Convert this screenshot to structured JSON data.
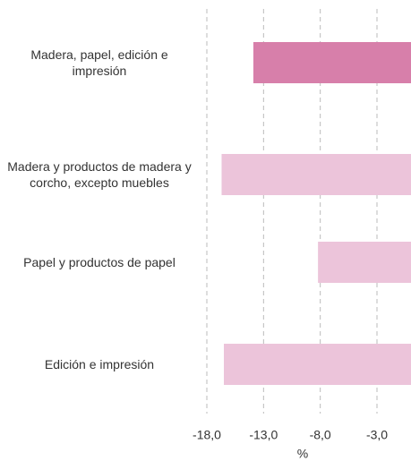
{
  "chart_data": {
    "type": "barh",
    "categories": [
      "Madera, papel, edición e impresión",
      "Madera y productos de madera y corcho, excepto muebles",
      "Papel y productos de papel",
      "Edición e impresión"
    ],
    "values": [
      -13.9,
      -16.7,
      -8.2,
      -16.5
    ],
    "colors": [
      "#d77faa",
      "#ecc4da",
      "#ecc4da",
      "#ecc4da"
    ],
    "xlim": [
      -18,
      0
    ],
    "xticks": [
      {
        "value": -18,
        "label": "-18,0"
      },
      {
        "value": -13,
        "label": "-13,0"
      },
      {
        "value": -8,
        "label": "-8,0"
      },
      {
        "value": -3,
        "label": "-3,0"
      }
    ],
    "xlabel": "%",
    "grid": true
  }
}
